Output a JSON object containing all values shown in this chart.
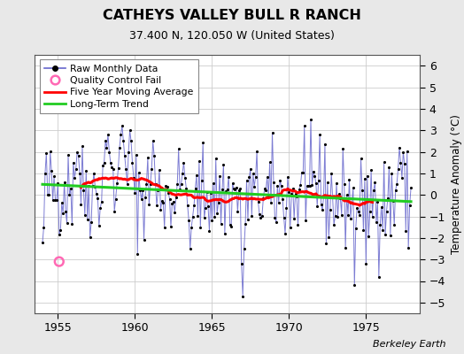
{
  "title": "CATHEYS VALLEY BULL R RANCH",
  "subtitle": "37.400 N, 120.050 W (United States)",
  "ylabel": "Temperature Anomaly (°C)",
  "credit": "Berkeley Earth",
  "ylim": [
    -5.5,
    6.5
  ],
  "yticks": [
    -5,
    -4,
    -3,
    -2,
    -1,
    0,
    1,
    2,
    3,
    4,
    5,
    6
  ],
  "xlim": [
    1953.5,
    1978.5
  ],
  "xticks": [
    1955,
    1960,
    1965,
    1970,
    1975
  ],
  "bg_color": "#e8e8e8",
  "plot_bg_color": "#ffffff",
  "raw_line_color": "#6666cc",
  "raw_dot_color": "#000000",
  "qc_fail_color": "#ff69b4",
  "moving_avg_color": "#ff0000",
  "trend_color": "#22cc22",
  "grid_color": "#cccccc"
}
